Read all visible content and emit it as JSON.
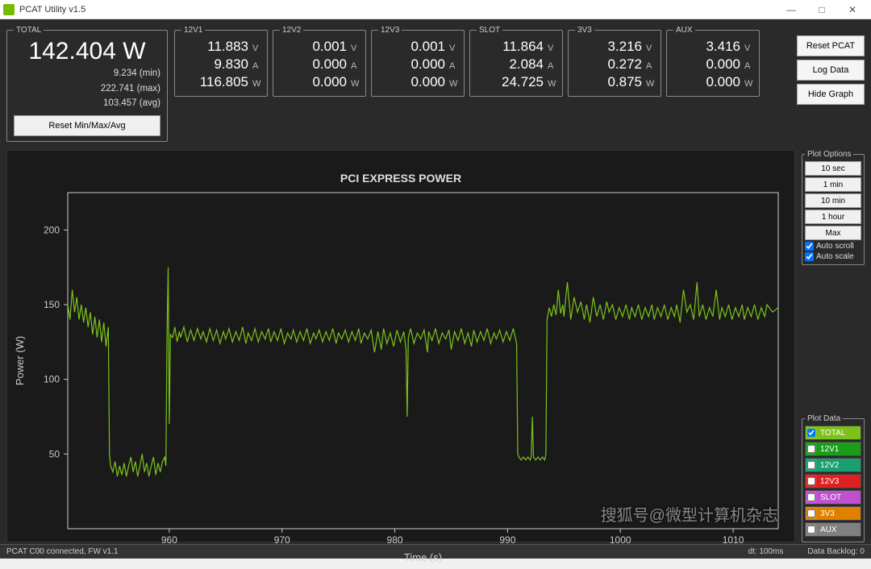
{
  "window": {
    "title": "PCAT Utility v1.5",
    "icon_color": "#76b900"
  },
  "total": {
    "legend": "TOTAL",
    "value": "142.404",
    "unit": "W",
    "min": "9.234 (min)",
    "max": "222.741 (max)",
    "avg": "103.457 (avg)",
    "reset_label": "Reset Min/Max/Avg"
  },
  "channel_units": [
    "V",
    "A",
    "W"
  ],
  "channels": [
    {
      "name": "12V1",
      "v": "11.883",
      "a": "9.830",
      "w": "116.805"
    },
    {
      "name": "12V2",
      "v": "0.001",
      "a": "0.000",
      "w": "0.000"
    },
    {
      "name": "12V3",
      "v": "0.001",
      "a": "0.000",
      "w": "0.000"
    },
    {
      "name": "SLOT",
      "v": "11.864",
      "a": "2.084",
      "w": "24.725"
    },
    {
      "name": "3V3",
      "v": "3.216",
      "a": "0.272",
      "w": "0.875"
    },
    {
      "name": "AUX",
      "v": "3.416",
      "a": "0.000",
      "w": "0.000"
    }
  ],
  "right_buttons": {
    "reset": "Reset PCAT",
    "log": "Log Data",
    "hide": "Hide Graph"
  },
  "plot_options": {
    "legend": "Plot Options",
    "buttons": [
      "10 sec",
      "1 min",
      "10 min",
      "1 hour",
      "Max"
    ],
    "auto_scroll_label": "Auto scroll",
    "auto_scroll": true,
    "auto_scale_label": "Auto scale",
    "auto_scale": true
  },
  "plot_data": {
    "legend": "Plot Data",
    "items": [
      {
        "label": "TOTAL",
        "color": "#7cc21a",
        "checked": true
      },
      {
        "label": "12V1",
        "color": "#1a9e1a",
        "checked": false
      },
      {
        "label": "12V2",
        "color": "#1aa070",
        "checked": false
      },
      {
        "label": "12V3",
        "color": "#e02020",
        "checked": false
      },
      {
        "label": "SLOT",
        "color": "#c050d0",
        "checked": false
      },
      {
        "label": "3V3",
        "color": "#e08000",
        "checked": false
      },
      {
        "label": "AUX",
        "color": "#808080",
        "checked": false
      }
    ]
  },
  "chart": {
    "title": "PCI EXPRESS POWER",
    "xlabel": "Time (s)",
    "ylabel": "Power (W)",
    "background": "#1a1a1a",
    "plot_bg": "#222222",
    "border_color": "#cccccc",
    "text_color": "#cccccc",
    "line_color": "#7cc21a",
    "line_width": 1.2,
    "xlim": [
      951,
      1014
    ],
    "ylim": [
      0,
      225
    ],
    "xticks": [
      960,
      970,
      980,
      990,
      1000,
      1010
    ],
    "yticks": [
      50,
      100,
      150,
      200
    ],
    "series": [
      [
        951,
        150
      ],
      [
        951.2,
        140
      ],
      [
        951.4,
        160
      ],
      [
        951.6,
        145
      ],
      [
        951.8,
        155
      ],
      [
        952,
        140
      ],
      [
        952.2,
        150
      ],
      [
        952.4,
        138
      ],
      [
        952.6,
        148
      ],
      [
        952.8,
        135
      ],
      [
        953,
        145
      ],
      [
        953.2,
        130
      ],
      [
        953.4,
        142
      ],
      [
        953.6,
        128
      ],
      [
        953.8,
        140
      ],
      [
        954,
        125
      ],
      [
        954.2,
        138
      ],
      [
        954.4,
        122
      ],
      [
        954.6,
        135
      ],
      [
        954.7,
        50
      ],
      [
        954.8,
        42
      ],
      [
        955,
        38
      ],
      [
        955.2,
        45
      ],
      [
        955.4,
        35
      ],
      [
        955.6,
        42
      ],
      [
        955.8,
        36
      ],
      [
        956,
        44
      ],
      [
        956.2,
        35
      ],
      [
        956.4,
        42
      ],
      [
        956.6,
        48
      ],
      [
        956.8,
        38
      ],
      [
        957,
        45
      ],
      [
        957.2,
        35
      ],
      [
        957.4,
        42
      ],
      [
        957.6,
        50
      ],
      [
        957.8,
        38
      ],
      [
        958,
        44
      ],
      [
        958.2,
        35
      ],
      [
        958.4,
        42
      ],
      [
        958.6,
        48
      ],
      [
        958.8,
        36
      ],
      [
        959,
        44
      ],
      [
        959.2,
        38
      ],
      [
        959.4,
        45
      ],
      [
        959.6,
        48
      ],
      [
        959.7,
        42
      ],
      [
        959.8,
        130
      ],
      [
        959.9,
        175
      ],
      [
        960,
        70
      ],
      [
        960.1,
        130
      ],
      [
        960.3,
        128
      ],
      [
        960.5,
        135
      ],
      [
        960.7,
        125
      ],
      [
        960.9,
        132
      ],
      [
        961,
        128
      ],
      [
        961.3,
        135
      ],
      [
        961.6,
        125
      ],
      [
        961.9,
        133
      ],
      [
        962.2,
        126
      ],
      [
        962.5,
        134
      ],
      [
        962.8,
        127
      ],
      [
        963,
        132
      ],
      [
        963.3,
        125
      ],
      [
        963.6,
        134
      ],
      [
        963.9,
        126
      ],
      [
        964.2,
        133
      ],
      [
        964.5,
        124
      ],
      [
        964.8,
        132
      ],
      [
        965,
        127
      ],
      [
        965.3,
        134
      ],
      [
        965.6,
        125
      ],
      [
        965.9,
        132
      ],
      [
        966.2,
        126
      ],
      [
        966.5,
        135
      ],
      [
        966.8,
        124
      ],
      [
        967,
        131
      ],
      [
        967.3,
        126
      ],
      [
        967.6,
        134
      ],
      [
        967.9,
        125
      ],
      [
        968.2,
        132
      ],
      [
        968.5,
        127
      ],
      [
        968.8,
        134
      ],
      [
        969,
        125
      ],
      [
        969.3,
        132
      ],
      [
        969.6,
        126
      ],
      [
        969.9,
        134
      ],
      [
        970.2,
        124
      ],
      [
        970.5,
        131
      ],
      [
        970.8,
        127
      ],
      [
        971,
        133
      ],
      [
        971.3,
        125
      ],
      [
        971.6,
        132
      ],
      [
        971.9,
        126
      ],
      [
        972.2,
        134
      ],
      [
        972.5,
        124
      ],
      [
        972.8,
        131
      ],
      [
        973,
        127
      ],
      [
        973.3,
        133
      ],
      [
        973.6,
        125
      ],
      [
        973.9,
        132
      ],
      [
        974.2,
        126
      ],
      [
        974.5,
        134
      ],
      [
        974.8,
        124
      ],
      [
        975,
        131
      ],
      [
        975.3,
        127
      ],
      [
        975.6,
        133
      ],
      [
        975.9,
        125
      ],
      [
        976.2,
        132
      ],
      [
        976.5,
        126
      ],
      [
        976.8,
        134
      ],
      [
        977,
        124
      ],
      [
        977.3,
        131
      ],
      [
        977.6,
        127
      ],
      [
        977.9,
        133
      ],
      [
        978.2,
        118
      ],
      [
        978.5,
        132
      ],
      [
        978.8,
        120
      ],
      [
        979,
        134
      ],
      [
        979.3,
        124
      ],
      [
        979.6,
        131
      ],
      [
        979.9,
        122
      ],
      [
        980.2,
        133
      ],
      [
        980.5,
        125
      ],
      [
        980.8,
        132
      ],
      [
        981,
        120
      ],
      [
        981.1,
        75
      ],
      [
        981.2,
        128
      ],
      [
        981.4,
        134
      ],
      [
        981.7,
        124
      ],
      [
        982,
        131
      ],
      [
        982.3,
        127
      ],
      [
        982.6,
        133
      ],
      [
        982.9,
        118
      ],
      [
        983,
        132
      ],
      [
        983.3,
        126
      ],
      [
        983.6,
        134
      ],
      [
        983.9,
        124
      ],
      [
        984.2,
        131
      ],
      [
        984.5,
        127
      ],
      [
        984.8,
        133
      ],
      [
        985,
        120
      ],
      [
        985.3,
        132
      ],
      [
        985.6,
        126
      ],
      [
        985.9,
        134
      ],
      [
        986.2,
        124
      ],
      [
        986.5,
        131
      ],
      [
        986.8,
        122
      ],
      [
        987,
        133
      ],
      [
        987.3,
        125
      ],
      [
        987.6,
        132
      ],
      [
        987.9,
        126
      ],
      [
        988.2,
        134
      ],
      [
        988.5,
        124
      ],
      [
        988.8,
        131
      ],
      [
        989,
        127
      ],
      [
        989.3,
        133
      ],
      [
        989.6,
        125
      ],
      [
        989.9,
        132
      ],
      [
        990.2,
        126
      ],
      [
        990.5,
        134
      ],
      [
        990.8,
        124
      ],
      [
        990.9,
        50
      ],
      [
        991,
        48
      ],
      [
        991.2,
        46
      ],
      [
        991.4,
        48
      ],
      [
        991.6,
        46
      ],
      [
        991.8,
        48
      ],
      [
        992,
        46
      ],
      [
        992.1,
        48
      ],
      [
        992.2,
        75
      ],
      [
        992.3,
        48
      ],
      [
        992.5,
        46
      ],
      [
        992.7,
        48
      ],
      [
        992.9,
        46
      ],
      [
        993.1,
        48
      ],
      [
        993.3,
        46
      ],
      [
        993.4,
        50
      ],
      [
        993.5,
        140
      ],
      [
        993.7,
        148
      ],
      [
        993.9,
        142
      ],
      [
        994.1,
        150
      ],
      [
        994.3,
        143
      ],
      [
        994.5,
        160
      ],
      [
        994.7,
        144
      ],
      [
        994.9,
        150
      ],
      [
        995,
        142
      ],
      [
        995.3,
        165
      ],
      [
        995.6,
        140
      ],
      [
        995.9,
        155
      ],
      [
        996.2,
        145
      ],
      [
        996.5,
        152
      ],
      [
        996.8,
        140
      ],
      [
        997,
        150
      ],
      [
        997.3,
        138
      ],
      [
        997.6,
        155
      ],
      [
        997.9,
        142
      ],
      [
        998.2,
        150
      ],
      [
        998.5,
        140
      ],
      [
        998.8,
        152
      ],
      [
        999,
        145
      ],
      [
        999.3,
        150
      ],
      [
        999.6,
        140
      ],
      [
        999.9,
        148
      ],
      [
        1000.2,
        142
      ],
      [
        1000.5,
        150
      ],
      [
        1000.8,
        140
      ],
      [
        1001,
        148
      ],
      [
        1001.3,
        142
      ],
      [
        1001.6,
        150
      ],
      [
        1001.9,
        140
      ],
      [
        1002.2,
        148
      ],
      [
        1002.5,
        142
      ],
      [
        1002.8,
        150
      ],
      [
        1003,
        140
      ],
      [
        1003.3,
        148
      ],
      [
        1003.6,
        142
      ],
      [
        1003.9,
        150
      ],
      [
        1004.2,
        140
      ],
      [
        1004.5,
        148
      ],
      [
        1004.8,
        142
      ],
      [
        1005,
        150
      ],
      [
        1005.3,
        138
      ],
      [
        1005.6,
        160
      ],
      [
        1005.9,
        145
      ],
      [
        1006.2,
        150
      ],
      [
        1006.5,
        140
      ],
      [
        1006.8,
        165
      ],
      [
        1007,
        142
      ],
      [
        1007.3,
        150
      ],
      [
        1007.6,
        140
      ],
      [
        1007.9,
        148
      ],
      [
        1008.2,
        142
      ],
      [
        1008.5,
        160
      ],
      [
        1008.8,
        140
      ],
      [
        1009,
        148
      ],
      [
        1009.3,
        142
      ],
      [
        1009.6,
        150
      ],
      [
        1009.9,
        140
      ],
      [
        1010.2,
        148
      ],
      [
        1010.5,
        142
      ],
      [
        1010.8,
        150
      ],
      [
        1011,
        140
      ],
      [
        1011.3,
        148
      ],
      [
        1011.6,
        142
      ],
      [
        1011.9,
        150
      ],
      [
        1012.2,
        140
      ],
      [
        1012.5,
        148
      ],
      [
        1012.8,
        142
      ],
      [
        1013,
        150
      ],
      [
        1013.5,
        145
      ],
      [
        1014,
        148
      ]
    ]
  },
  "status": {
    "left": "PCAT C00 connected, FW v1.1",
    "mid": "dt: 100ms",
    "right": "Data Backlog: 0"
  },
  "watermark": "搜狐号@微型计算机杂志"
}
